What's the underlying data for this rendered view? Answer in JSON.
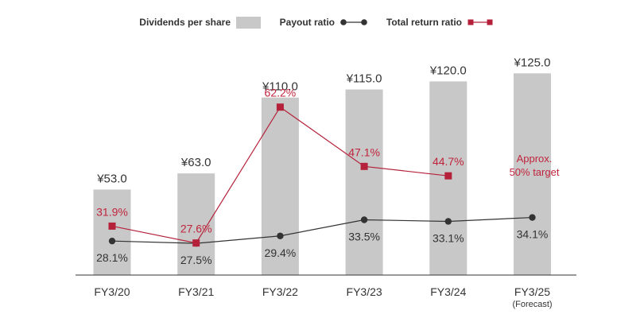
{
  "chart_data": {
    "type": "bar",
    "categories": [
      "FY3/20",
      "FY3/21",
      "FY3/22",
      "FY3/23",
      "FY3/24",
      "FY3/25"
    ],
    "category_notes": [
      "",
      "",
      "",
      "",
      "",
      "(Forecast)"
    ],
    "ylim": [
      0,
      130
    ],
    "y2lim": [
      0,
      75
    ],
    "legend": {
      "placement": "top",
      "dividends": "Dividends per share",
      "payout": "Payout ratio",
      "total": "Total return ratio"
    },
    "colors": {
      "bar": "#c8c8c8",
      "payout": "#333333",
      "total": "#b5213a",
      "total_text": "#c0243c"
    },
    "series": [
      {
        "name": "Dividends per share",
        "kind": "bar",
        "values": [
          53.0,
          63.0,
          110.0,
          115.0,
          120.0,
          125.0
        ],
        "labels": [
          "¥53.0",
          "¥63.0",
          "¥110.0",
          "¥115.0",
          "¥120.0",
          "¥125.0"
        ]
      },
      {
        "name": "Payout ratio",
        "kind": "line",
        "axis": "right",
        "values": [
          28.1,
          27.5,
          29.4,
          33.5,
          33.1,
          34.1
        ],
        "labels": [
          "28.1%",
          "27.5%",
          "29.4%",
          "33.5%",
          "33.1%",
          "34.1%"
        ]
      },
      {
        "name": "Total return ratio",
        "kind": "line",
        "axis": "right",
        "values": [
          31.9,
          27.6,
          62.2,
          47.1,
          44.7,
          null
        ],
        "labels": [
          "31.9%",
          "27.6%",
          "62.2%",
          "47.1%",
          "44.7%",
          ""
        ]
      }
    ],
    "annotation": {
      "line1": "Approx.",
      "line2": "50% target"
    }
  }
}
